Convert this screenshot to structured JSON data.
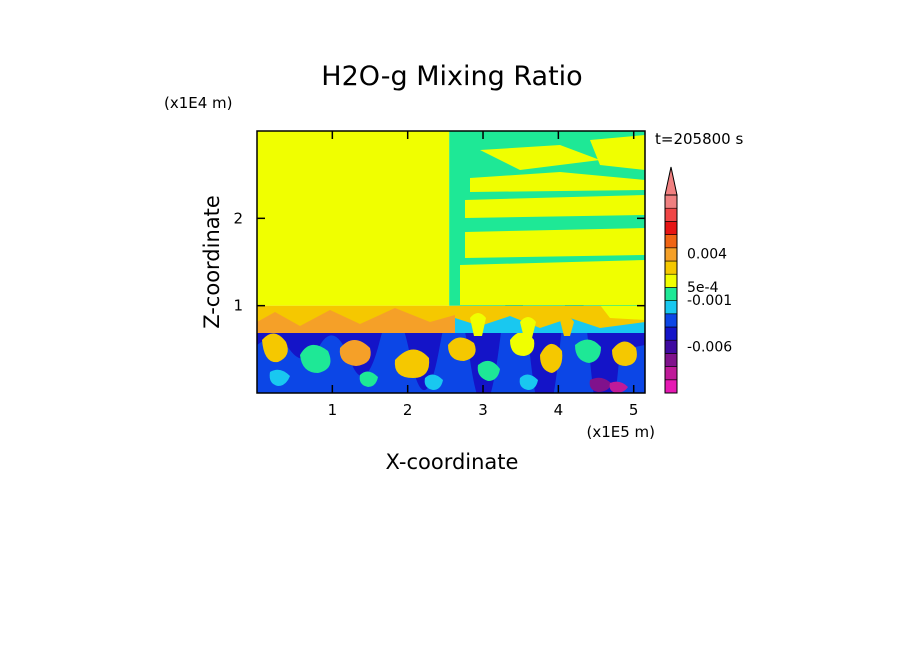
{
  "chart_data": {
    "type": "heatmap",
    "title": "H2O-g Mixing Ratio",
    "xlabel": "X-coordinate",
    "ylabel": "Z-coordinate",
    "x_unit": "(x1E5 m)",
    "y_unit": "(x1E4 m)",
    "time_label": "t=205800 s",
    "xlim": [
      0.0,
      5.15
    ],
    "ylim": [
      0.0,
      3.0
    ],
    "x_ticks": [
      {
        "value": 1,
        "label": "1"
      },
      {
        "value": 2,
        "label": "2"
      },
      {
        "value": 3,
        "label": "3"
      },
      {
        "value": 4,
        "label": "4"
      },
      {
        "value": 5,
        "label": "5"
      }
    ],
    "y_ticks": [
      {
        "value": 1,
        "label": "1"
      },
      {
        "value": 2,
        "label": "2"
      }
    ],
    "colorbar": {
      "levels": [
        {
          "color": "#e619b3"
        },
        {
          "color": "#bf1a99"
        },
        {
          "color": "#80128c"
        },
        {
          "color": "#3f0aa0"
        },
        {
          "color": "#1414c8"
        },
        {
          "color": "#0c46e6"
        },
        {
          "color": "#19c8f0"
        },
        {
          "color": "#1ee896"
        },
        {
          "color": "#f0ff00"
        },
        {
          "color": "#f5c800"
        },
        {
          "color": "#f5a028"
        },
        {
          "color": "#f06414"
        },
        {
          "color": "#e61414"
        },
        {
          "color": "#f04646"
        },
        {
          "color": "#f08080"
        }
      ],
      "labels": [
        {
          "text": "0.004",
          "pos": 0.705
        },
        {
          "text": "5e-4",
          "pos": 0.535
        },
        {
          "text": "-0.001",
          "pos": 0.47
        },
        {
          "text": "-0.006",
          "pos": 0.235
        }
      ]
    },
    "regions": [
      {
        "name": "upper-left",
        "x": [
          0.0,
          2.55
        ],
        "z": [
          1.0,
          3.0
        ],
        "color": "#f0ff00"
      },
      {
        "name": "upper-right",
        "x": [
          2.55,
          5.15
        ],
        "z": [
          1.0,
          3.0
        ],
        "color": "#1ee896"
      },
      {
        "name": "middle-band",
        "x": [
          0.0,
          5.15
        ],
        "z": [
          0.7,
          1.0
        ],
        "color": "#f5c800"
      },
      {
        "name": "lower-layer",
        "x": [
          0.0,
          5.15
        ],
        "z": [
          0.0,
          0.7
        ],
        "color": "#1414c8"
      }
    ]
  }
}
